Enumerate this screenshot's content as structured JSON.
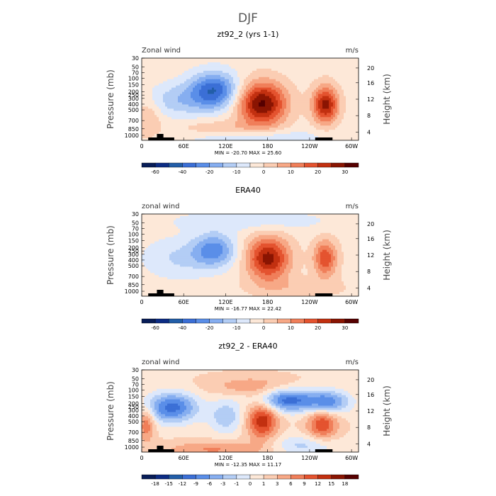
{
  "figure": {
    "main_title": "DJF"
  },
  "colors": [
    "#081d58",
    "#0c2c84",
    "#225ea8",
    "#3b6fd6",
    "#5a8ee8",
    "#86aef0",
    "#b3cdf5",
    "#dde8fb",
    "#fde8d8",
    "#fbcdb3",
    "#f7a886",
    "#f07f5a",
    "#e4532f",
    "#c23010",
    "#8a1502",
    "#560000"
  ],
  "chart_data": [
    {
      "type": "contour",
      "title": "zt92_2 (yrs 1-1)",
      "corner_left": "Zonal wind",
      "corner_right": "m/s",
      "ylabel": "Pressure (mb)",
      "y2label": "Height (km)",
      "y_ticks": [
        "30",
        "50",
        "70",
        "100",
        "150",
        "200",
        "250",
        "300",
        "400",
        "500",
        "700",
        "850",
        "1000"
      ],
      "y2_ticks": [
        "20",
        "16",
        "12",
        "8",
        "4"
      ],
      "x_ticks": [
        "0",
        "60E",
        "120E",
        "180",
        "120W",
        "60W"
      ],
      "min_max": "MIN = -20.70   MAX = 25.60",
      "colorbar_levels": [
        "-60",
        "-40",
        "-20",
        "-10",
        "0",
        "10",
        "20",
        "30"
      ],
      "blobs": [
        {
          "lon": 120,
          "p": 120,
          "sx": 28,
          "sy": 0.55,
          "amp": -20
        },
        {
          "lon": 60,
          "p": 180,
          "sx": 35,
          "sy": 0.5,
          "amp": -8
        },
        {
          "lon": 200,
          "p": 210,
          "sx": 28,
          "sy": 0.65,
          "amp": 25
        },
        {
          "lon": 305,
          "p": 220,
          "sx": 15,
          "sy": 0.55,
          "amp": 22
        },
        {
          "lon": 190,
          "p": 900,
          "sx": 80,
          "sy": 0.25,
          "amp": -6
        },
        {
          "lon": 130,
          "p": 600,
          "sx": 50,
          "sy": 0.25,
          "amp": 5
        },
        {
          "lon": 10,
          "p": 400,
          "sx": 15,
          "sy": 0.6,
          "amp": 6
        }
      ],
      "scale": 30
    },
    {
      "type": "contour",
      "title": "ERA40",
      "corner_left": "zonal wind",
      "corner_right": "m/s",
      "ylabel": "Pressure (mb)",
      "y2label": "Height (km)",
      "y_ticks": [
        "30",
        "50",
        "70",
        "100",
        "150",
        "200",
        "250",
        "300",
        "400",
        "500",
        "700",
        "850",
        "1000"
      ],
      "y2_ticks": [
        "20",
        "16",
        "12",
        "8",
        "4"
      ],
      "x_ticks": [
        "0",
        "60E",
        "120E",
        "180",
        "120W",
        "60W"
      ],
      "min_max": "MIN = -16.77   MAX = 22.42",
      "colorbar_levels": [
        "-60",
        "-40",
        "-20",
        "-10",
        "0",
        "10",
        "20",
        "30"
      ],
      "blobs": [
        {
          "lon": 120,
          "p": 140,
          "sx": 25,
          "sy": 0.5,
          "amp": -15
        },
        {
          "lon": 60,
          "p": 200,
          "sx": 40,
          "sy": 0.6,
          "amp": -6
        },
        {
          "lon": 210,
          "p": 200,
          "sx": 25,
          "sy": 0.65,
          "amp": 22
        },
        {
          "lon": 305,
          "p": 200,
          "sx": 14,
          "sy": 0.55,
          "amp": 16
        },
        {
          "lon": 180,
          "p": 40,
          "sx": 90,
          "sy": 0.3,
          "amp": -5
        },
        {
          "lon": 260,
          "p": 700,
          "sx": 60,
          "sy": 0.3,
          "amp": 4
        }
      ],
      "scale": 30
    },
    {
      "type": "contour",
      "title": "zt92_2 - ERA40",
      "corner_left": "zonal wind",
      "corner_right": "m/s",
      "ylabel": "Pressure (mb)",
      "y2label": "Height (km)",
      "y_ticks": [
        "30",
        "50",
        "70",
        "100",
        "150",
        "200",
        "250",
        "300",
        "400",
        "500",
        "700",
        "850",
        "1000"
      ],
      "y2_ticks": [
        "20",
        "16",
        "12",
        "8",
        "4"
      ],
      "x_ticks": [
        "0",
        "60E",
        "120E",
        "180",
        "120W",
        "60W"
      ],
      "min_max": "MIN = -12.35   MAX = 11.17",
      "colorbar_levels": [
        "-18",
        "-15",
        "-12",
        "-9",
        "-6",
        "-3",
        "-1",
        "0",
        "1",
        "3",
        "6",
        "9",
        "12",
        "15",
        "18"
      ],
      "blobs": [
        {
          "lon": 50,
          "p": 150,
          "sx": 30,
          "sy": 0.45,
          "amp": -12
        },
        {
          "lon": 200,
          "p": 250,
          "sx": 18,
          "sy": 0.6,
          "amp": 11
        },
        {
          "lon": 240,
          "p": 110,
          "sx": 35,
          "sy": 0.35,
          "amp": -12
        },
        {
          "lon": 310,
          "p": 120,
          "sx": 25,
          "sy": 0.35,
          "amp": -10
        },
        {
          "lon": 300,
          "p": 300,
          "sx": 18,
          "sy": 0.5,
          "amp": 9
        },
        {
          "lon": 8,
          "p": 300,
          "sx": 10,
          "sy": 0.5,
          "amp": 7
        },
        {
          "lon": 140,
          "p": 220,
          "sx": 20,
          "sy": 0.5,
          "amp": -6
        },
        {
          "lon": 120,
          "p": 900,
          "sx": 60,
          "sy": 0.25,
          "amp": 5
        },
        {
          "lon": 270,
          "p": 750,
          "sx": 40,
          "sy": 0.3,
          "amp": -5
        },
        {
          "lon": 180,
          "p": 60,
          "sx": 50,
          "sy": 0.3,
          "amp": 4
        }
      ],
      "scale": 18
    }
  ]
}
